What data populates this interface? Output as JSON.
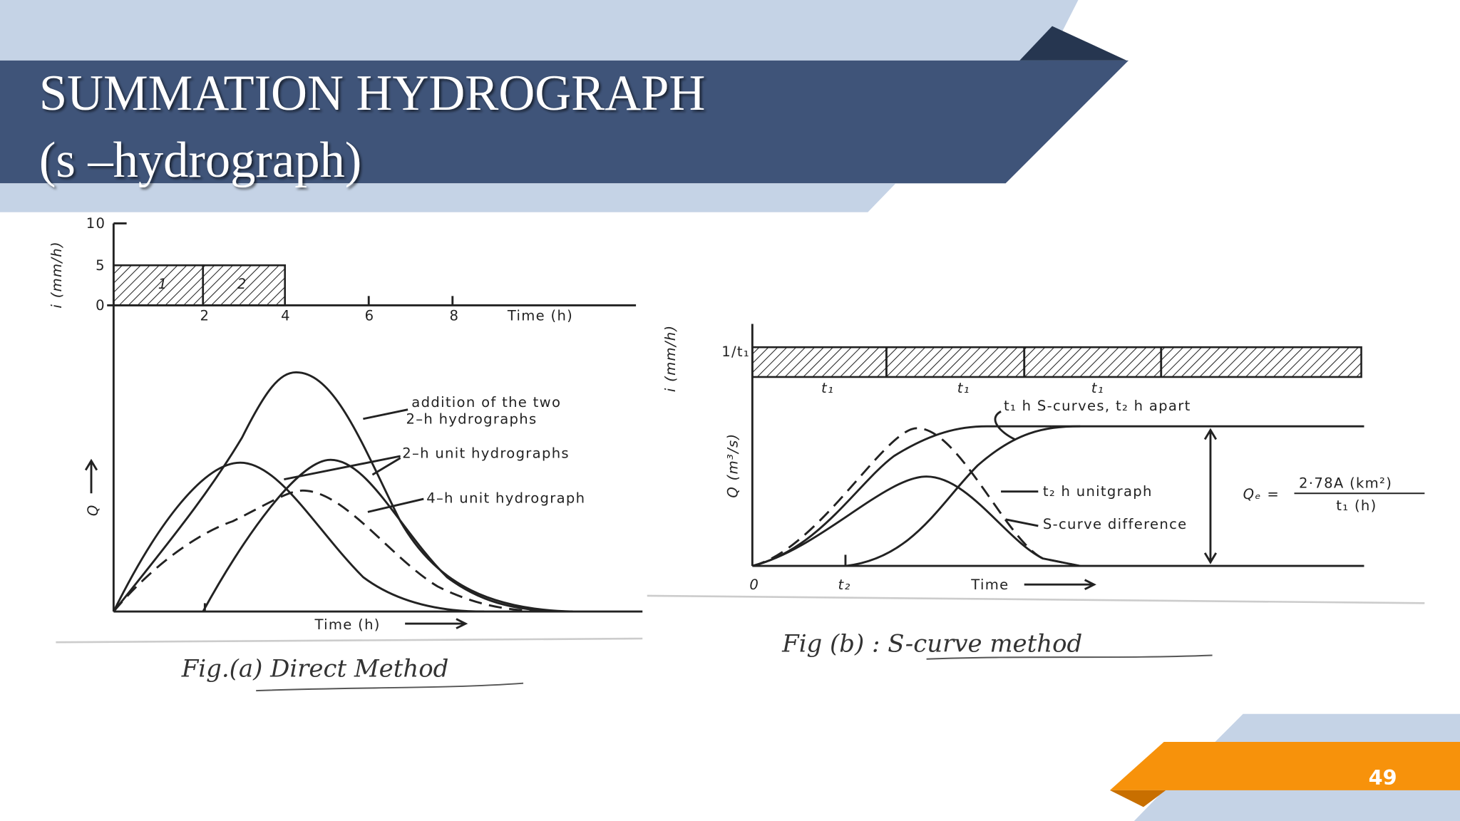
{
  "slide": {
    "title": "SUMMATION HYDROGRAPH",
    "subtitle": "(s –hydrograph)",
    "page_number": "49"
  },
  "figure_a": {
    "y_axis_top": "i (mm/h)",
    "y_ticks": [
      "10",
      "5",
      "0"
    ],
    "block_labels": [
      "1",
      "2"
    ],
    "x_ticks": [
      "2",
      "4",
      "6",
      "8"
    ],
    "x_axis_top": "Time (h)",
    "y_axis_bottom": "Q",
    "x_axis_bottom": "Time (h)",
    "annotations": [
      "addition of the two",
      "2–h hydrographs",
      "2–h unit  hydrographs",
      "4–h unit hydrograph"
    ],
    "caption": "Fig.(a) Direct Method"
  },
  "figure_b": {
    "intensity_label": "1/t₁",
    "duration_labels": [
      "t₁",
      "t₁",
      "t₁"
    ],
    "y_axis_top": "i (mm/h)",
    "y_axis_bottom": "Q (m³/s)",
    "annotations": [
      "t₁ h S-curves, t₂ h apart",
      "t₂ h unitgraph",
      "S-curve difference"
    ],
    "formula": {
      "lhs": "Qₑ  =",
      "numerator": "2·78A (km²)",
      "denominator": "t₁ (h)"
    },
    "origin_label": "0",
    "offset_label": "t₂",
    "x_axis": "Time",
    "caption": "Fig (b) : S-curve method"
  }
}
